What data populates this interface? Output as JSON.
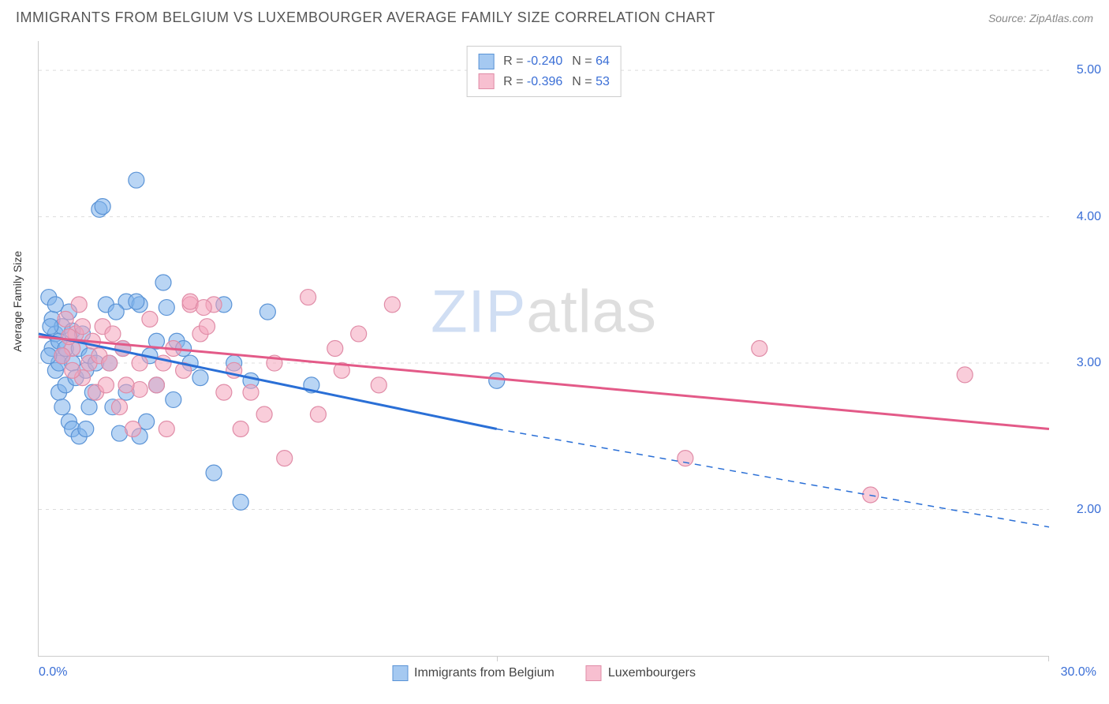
{
  "header": {
    "title": "IMMIGRANTS FROM BELGIUM VS LUXEMBOURGER AVERAGE FAMILY SIZE CORRELATION CHART",
    "source": "Source: ZipAtlas.com"
  },
  "watermark": {
    "prefix": "ZIP",
    "suffix": "atlas"
  },
  "chart": {
    "type": "scatter-correlation",
    "background_color": "#ffffff",
    "grid_color": "#dddddd",
    "axis_color": "#cccccc",
    "axis_label_color": "#333333",
    "tick_text_color": "#3b6fd6",
    "y_axis_label": "Average Family Size",
    "x_axis": {
      "min": 0.0,
      "max": 30.0,
      "tick_percent_left": "0.0%",
      "tick_percent_right": "30.0%",
      "mid_tick_at": 13.6
    },
    "y_axis": {
      "min": 1.0,
      "max": 5.2,
      "ticks": [
        2.0,
        3.0,
        4.0,
        5.0
      ],
      "tick_labels": [
        "2.00",
        "3.00",
        "4.00",
        "5.00"
      ]
    },
    "series": [
      {
        "name": "Immigrants from Belgium",
        "marker_fill": "rgba(127,178,235,0.55)",
        "marker_stroke": "#5a93d6",
        "line_color": "#2a6fd6",
        "line_width": 3,
        "marker_radius": 10,
        "R": "-0.240",
        "N": "64",
        "trend": {
          "x1": 0.0,
          "y1": 3.2,
          "x2_solid": 13.6,
          "y2_solid": 2.55,
          "x2_dash": 30.0,
          "y2_dash": 1.88
        },
        "points": [
          [
            0.3,
            3.45
          ],
          [
            0.4,
            3.3
          ],
          [
            0.4,
            3.1
          ],
          [
            0.5,
            3.2
          ],
          [
            0.5,
            2.95
          ],
          [
            0.5,
            3.4
          ],
          [
            0.6,
            3.0
          ],
          [
            0.6,
            3.15
          ],
          [
            0.6,
            2.8
          ],
          [
            0.7,
            3.25
          ],
          [
            0.7,
            3.05
          ],
          [
            0.7,
            2.7
          ],
          [
            0.8,
            3.1
          ],
          [
            0.8,
            2.85
          ],
          [
            0.9,
            3.35
          ],
          [
            0.9,
            2.6
          ],
          [
            1.0,
            3.0
          ],
          [
            1.0,
            3.22
          ],
          [
            1.0,
            2.55
          ],
          [
            1.1,
            2.9
          ],
          [
            1.2,
            3.1
          ],
          [
            1.2,
            2.5
          ],
          [
            1.3,
            3.2
          ],
          [
            1.4,
            2.95
          ],
          [
            1.5,
            2.7
          ],
          [
            1.5,
            3.05
          ],
          [
            1.6,
            2.8
          ],
          [
            1.7,
            3.0
          ],
          [
            1.8,
            4.05
          ],
          [
            1.9,
            4.07
          ],
          [
            2.0,
            3.4
          ],
          [
            2.1,
            3.0
          ],
          [
            2.2,
            2.7
          ],
          [
            2.4,
            2.52
          ],
          [
            2.5,
            3.1
          ],
          [
            2.6,
            2.8
          ],
          [
            2.6,
            3.42
          ],
          [
            2.9,
            4.25
          ],
          [
            3.0,
            2.5
          ],
          [
            3.0,
            3.4
          ],
          [
            3.2,
            2.6
          ],
          [
            3.3,
            3.05
          ],
          [
            3.5,
            3.15
          ],
          [
            3.5,
            2.85
          ],
          [
            3.7,
            3.55
          ],
          [
            4.0,
            2.75
          ],
          [
            4.1,
            3.15
          ],
          [
            4.3,
            3.1
          ],
          [
            4.5,
            3.0
          ],
          [
            4.8,
            2.9
          ],
          [
            5.2,
            2.25
          ],
          [
            5.8,
            3.0
          ],
          [
            6.0,
            2.05
          ],
          [
            6.3,
            2.88
          ],
          [
            3.8,
            3.38
          ],
          [
            2.9,
            3.42
          ],
          [
            2.3,
            3.35
          ],
          [
            1.4,
            2.55
          ],
          [
            0.3,
            3.05
          ],
          [
            0.35,
            3.25
          ],
          [
            8.1,
            2.85
          ],
          [
            13.6,
            2.88
          ],
          [
            5.5,
            3.4
          ],
          [
            6.8,
            3.35
          ]
        ]
      },
      {
        "name": "Luxembourgers",
        "marker_fill": "rgba(244,164,188,0.55)",
        "marker_stroke": "#e08ca7",
        "line_color": "#e35a88",
        "line_width": 3,
        "marker_radius": 10,
        "R": "-0.396",
        "N": "53",
        "trend": {
          "x1": 0.0,
          "y1": 3.18,
          "x2_solid": 30.0,
          "y2_solid": 2.55,
          "x2_dash": 30.0,
          "y2_dash": 2.55
        },
        "points": [
          [
            0.8,
            3.3
          ],
          [
            1.0,
            3.1
          ],
          [
            1.1,
            3.2
          ],
          [
            1.3,
            2.9
          ],
          [
            1.3,
            3.25
          ],
          [
            1.5,
            3.0
          ],
          [
            1.6,
            3.15
          ],
          [
            1.7,
            2.8
          ],
          [
            1.8,
            3.05
          ],
          [
            1.9,
            3.25
          ],
          [
            2.0,
            2.85
          ],
          [
            2.1,
            3.0
          ],
          [
            2.2,
            3.2
          ],
          [
            2.4,
            2.7
          ],
          [
            2.5,
            3.1
          ],
          [
            2.8,
            2.55
          ],
          [
            3.0,
            3.0
          ],
          [
            3.0,
            2.82
          ],
          [
            3.3,
            3.3
          ],
          [
            3.5,
            2.85
          ],
          [
            3.7,
            3.0
          ],
          [
            3.8,
            2.55
          ],
          [
            4.0,
            3.1
          ],
          [
            4.3,
            2.95
          ],
          [
            4.5,
            3.4
          ],
          [
            4.5,
            3.42
          ],
          [
            4.8,
            3.2
          ],
          [
            5.2,
            3.4
          ],
          [
            4.9,
            3.38
          ],
          [
            5.5,
            2.8
          ],
          [
            5.8,
            2.95
          ],
          [
            6.3,
            2.8
          ],
          [
            6.7,
            2.65
          ],
          [
            7.0,
            3.0
          ],
          [
            7.3,
            2.35
          ],
          [
            8.0,
            3.45
          ],
          [
            8.3,
            2.65
          ],
          [
            8.8,
            3.1
          ],
          [
            9.0,
            2.95
          ],
          [
            9.5,
            3.2
          ],
          [
            10.5,
            3.4
          ],
          [
            10.1,
            2.85
          ],
          [
            19.2,
            2.35
          ],
          [
            21.4,
            3.1
          ],
          [
            24.7,
            2.1
          ],
          [
            27.5,
            2.92
          ],
          [
            6.0,
            2.55
          ],
          [
            5.0,
            3.25
          ],
          [
            2.6,
            2.85
          ],
          [
            1.2,
            3.4
          ],
          [
            1.0,
            2.95
          ],
          [
            0.9,
            3.18
          ],
          [
            0.7,
            3.05
          ]
        ]
      }
    ],
    "top_legend_swatch_blue_fill": "rgba(127,178,235,0.7)",
    "top_legend_swatch_blue_border": "#5a93d6",
    "top_legend_swatch_pink_fill": "rgba(244,164,188,0.7)",
    "top_legend_swatch_pink_border": "#e08ca7"
  }
}
